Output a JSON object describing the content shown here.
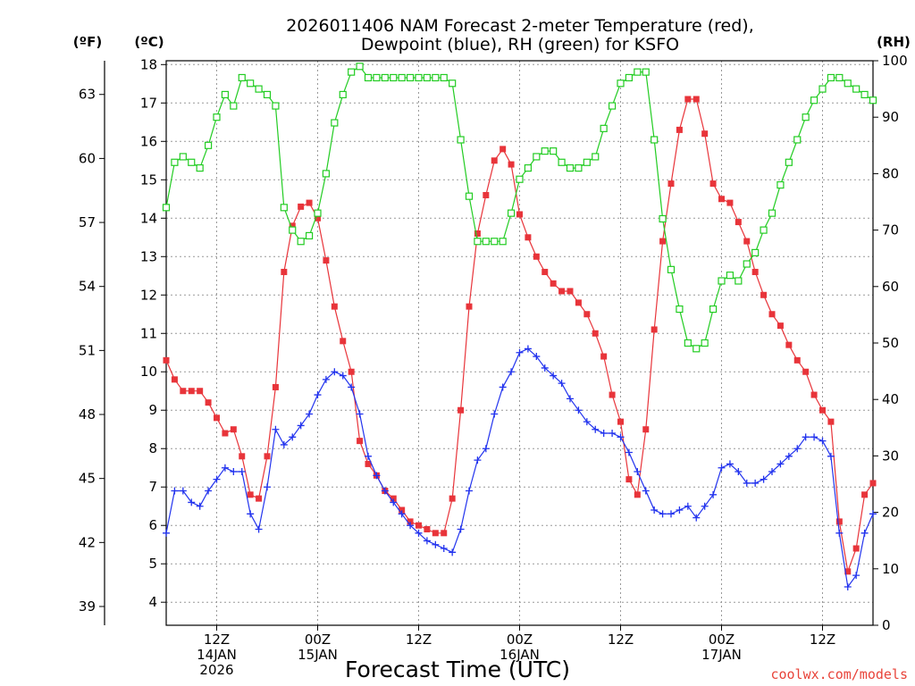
{
  "title_line1": "2026011406 NAM Forecast 2-meter Temperature (red),",
  "title_line2": "Dewpoint (blue), RH (green) for KSFO",
  "units": {
    "f": "(ºF)",
    "c": "(ºC)",
    "rh": "(RH)"
  },
  "xlabel": "Forecast Time (UTC)",
  "credit": "coolwx.com/models",
  "colors": {
    "temp": "#e8343a",
    "dew": "#2233ee",
    "rh": "#22cc22"
  },
  "chart_data": {
    "type": "line",
    "x_unit": "forecast hour from 2026-01-14 06Z",
    "x_range": [
      0,
      84
    ],
    "c_axis": {
      "range": [
        3.4,
        18.1
      ],
      "ticks": [
        4,
        5,
        6,
        7,
        8,
        9,
        10,
        11,
        12,
        13,
        14,
        15,
        16,
        17,
        18
      ]
    },
    "f_axis": {
      "ticks": [
        39,
        42,
        45,
        48,
        51,
        54,
        57,
        60,
        63
      ]
    },
    "rh_axis": {
      "range": [
        0,
        100
      ],
      "ticks": [
        0,
        10,
        20,
        30,
        40,
        50,
        60,
        70,
        80,
        90,
        100
      ]
    },
    "x_ticks": [
      {
        "hour": 6,
        "lines": [
          "12Z",
          "14JAN",
          "2026"
        ]
      },
      {
        "hour": 18,
        "lines": [
          "00Z",
          "15JAN"
        ]
      },
      {
        "hour": 30,
        "lines": [
          "12Z"
        ]
      },
      {
        "hour": 42,
        "lines": [
          "00Z",
          "16JAN"
        ]
      },
      {
        "hour": 54,
        "lines": [
          "12Z"
        ]
      },
      {
        "hour": 66,
        "lines": [
          "00Z",
          "17JAN"
        ]
      },
      {
        "hour": 78,
        "lines": [
          "12Z"
        ]
      }
    ],
    "series": [
      {
        "name": "Temperature",
        "unit": "C",
        "marker": "filled-square",
        "color": "#e8343a",
        "x": [
          0,
          1,
          2,
          3,
          4,
          5,
          6,
          7,
          8,
          9,
          10,
          11,
          12,
          13,
          14,
          15,
          16,
          17,
          18,
          19,
          20,
          21,
          22,
          23,
          24,
          25,
          26,
          27,
          28,
          29,
          30,
          31,
          32,
          33,
          34,
          35,
          36,
          37,
          38,
          39,
          40,
          41,
          42,
          43,
          44,
          45,
          46,
          47,
          48,
          49,
          50,
          51,
          52,
          53,
          54,
          55,
          56,
          57,
          58,
          59,
          60,
          61,
          62,
          63,
          64,
          65,
          66,
          67,
          68,
          69,
          70,
          71,
          72,
          73,
          74,
          75,
          76,
          77,
          78,
          79,
          80,
          81,
          82,
          83,
          84
        ],
        "values": [
          10.3,
          9.8,
          9.5,
          9.5,
          9.5,
          9.2,
          8.8,
          8.4,
          8.5,
          7.8,
          6.8,
          6.7,
          7.8,
          9.6,
          12.6,
          13.8,
          14.3,
          14.4,
          14.0,
          12.9,
          11.7,
          10.8,
          10.0,
          8.2,
          7.6,
          7.3,
          6.9,
          6.7,
          6.4,
          6.1,
          6.0,
          5.9,
          5.8,
          5.8,
          6.7,
          9.0,
          11.7,
          13.6,
          14.6,
          15.5,
          15.8,
          15.4,
          14.1,
          13.5,
          13.0,
          12.6,
          12.3,
          12.1,
          12.1,
          11.8,
          11.5,
          11.0,
          10.4,
          9.4,
          8.7,
          7.2,
          6.8,
          8.5,
          11.1,
          13.4,
          14.9,
          16.3,
          17.1,
          17.1,
          16.2,
          14.9,
          14.5,
          14.4,
          13.9,
          13.4,
          12.6,
          12.0,
          11.5,
          11.2,
          10.7,
          10.3,
          10.0,
          9.4,
          9.0,
          8.7,
          6.1,
          4.8,
          5.4,
          6.8,
          7.1
        ]
      },
      {
        "name": "Dewpoint",
        "unit": "C",
        "marker": "plus",
        "color": "#2233ee",
        "x": [
          0,
          1,
          2,
          3,
          4,
          5,
          6,
          7,
          8,
          9,
          10,
          11,
          12,
          13,
          14,
          15,
          16,
          17,
          18,
          19,
          20,
          21,
          22,
          23,
          24,
          25,
          26,
          27,
          28,
          29,
          30,
          31,
          32,
          33,
          34,
          35,
          36,
          37,
          38,
          39,
          40,
          41,
          42,
          43,
          44,
          45,
          46,
          47,
          48,
          49,
          50,
          51,
          52,
          53,
          54,
          55,
          56,
          57,
          58,
          59,
          60,
          61,
          62,
          63,
          64,
          65,
          66,
          67,
          68,
          69,
          70,
          71,
          72,
          73,
          74,
          75,
          76,
          77,
          78,
          79,
          80,
          81,
          82,
          83,
          84
        ],
        "values": [
          5.8,
          6.9,
          6.9,
          6.6,
          6.5,
          6.9,
          7.2,
          7.5,
          7.4,
          7.4,
          6.3,
          5.9,
          7.0,
          8.5,
          8.1,
          8.3,
          8.6,
          8.9,
          9.4,
          9.8,
          10.0,
          9.9,
          9.6,
          8.9,
          7.8,
          7.3,
          6.9,
          6.6,
          6.3,
          6.0,
          5.8,
          5.6,
          5.5,
          5.4,
          5.3,
          5.9,
          6.9,
          7.7,
          8.0,
          8.9,
          9.6,
          10.0,
          10.5,
          10.6,
          10.4,
          10.1,
          9.9,
          9.7,
          9.3,
          9.0,
          8.7,
          8.5,
          8.4,
          8.4,
          8.3,
          7.9,
          7.4,
          6.9,
          6.4,
          6.3,
          6.3,
          6.4,
          6.5,
          6.2,
          6.5,
          6.8,
          7.5,
          7.6,
          7.4,
          7.1,
          7.1,
          7.2,
          7.4,
          7.6,
          7.8,
          8.0,
          8.3,
          8.3,
          8.2,
          7.8,
          5.8,
          4.4,
          4.7,
          5.8,
          6.3
        ]
      },
      {
        "name": "RH",
        "unit": "%",
        "marker": "open-square",
        "color": "#22cc22",
        "x": [
          0,
          1,
          2,
          3,
          4,
          5,
          6,
          7,
          8,
          9,
          10,
          11,
          12,
          13,
          14,
          15,
          16,
          17,
          18,
          19,
          20,
          21,
          22,
          23,
          24,
          25,
          26,
          27,
          28,
          29,
          30,
          31,
          32,
          33,
          34,
          35,
          36,
          37,
          38,
          39,
          40,
          41,
          42,
          43,
          44,
          45,
          46,
          47,
          48,
          49,
          50,
          51,
          52,
          53,
          54,
          55,
          56,
          57,
          58,
          59,
          60,
          61,
          62,
          63,
          64,
          65,
          66,
          67,
          68,
          69,
          70,
          71,
          72,
          73,
          74,
          75,
          76,
          77,
          78,
          79,
          80,
          81,
          82,
          83,
          84
        ],
        "values": [
          74,
          82,
          83,
          82,
          81,
          85,
          90,
          94,
          92,
          97,
          96,
          95,
          94,
          92,
          74,
          70,
          68,
          69,
          73,
          80,
          89,
          94,
          98,
          99,
          97,
          97,
          97,
          97,
          97,
          97,
          97,
          97,
          97,
          97,
          96,
          86,
          76,
          68,
          68,
          68,
          68,
          73,
          79,
          81,
          83,
          84,
          84,
          82,
          81,
          81,
          82,
          83,
          88,
          92,
          96,
          97,
          98,
          98,
          86,
          72,
          63,
          56,
          50,
          49,
          50,
          56,
          61,
          62,
          61,
          64,
          66,
          70,
          73,
          78,
          82,
          86,
          90,
          93,
          95,
          97,
          97,
          96,
          95,
          94,
          93
        ]
      }
    ]
  }
}
